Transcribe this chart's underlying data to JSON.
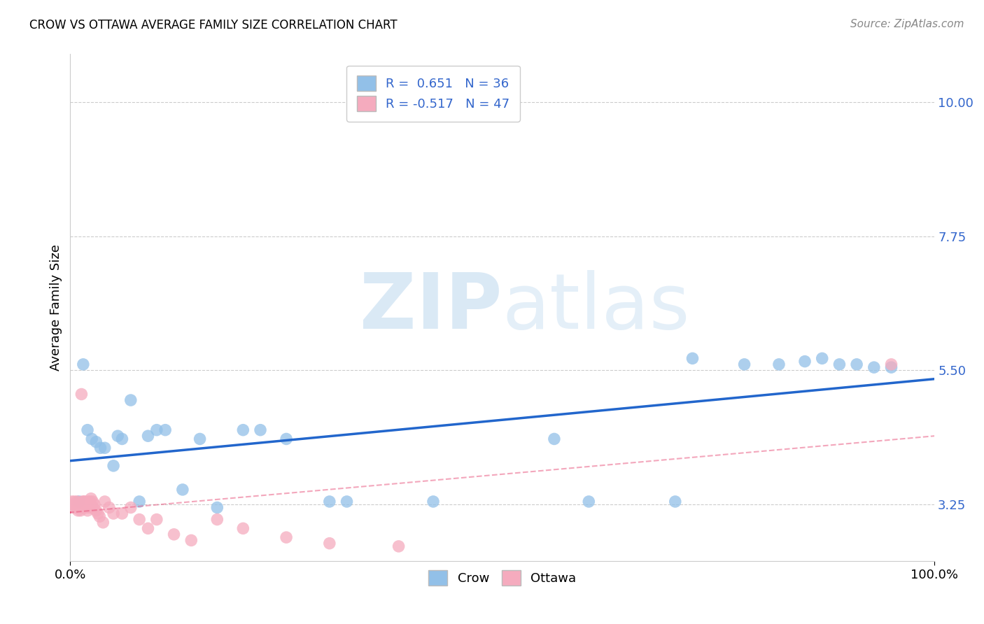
{
  "title": "CROW VS OTTAWA AVERAGE FAMILY SIZE CORRELATION CHART",
  "source": "Source: ZipAtlas.com",
  "ylabel": "Average Family Size",
  "xlim": [
    0.0,
    1.0
  ],
  "ylim": [
    2.3,
    10.8
  ],
  "yticks": [
    3.25,
    5.5,
    7.75,
    10.0
  ],
  "ytick_labels": [
    "3.25",
    "5.50",
    "7.75",
    "10.00"
  ],
  "crow_color": "#92C0E8",
  "ottawa_color": "#F5ABBE",
  "crow_line_color": "#2266CC",
  "ottawa_line_color": "#E8507A",
  "crow_R": 0.651,
  "crow_N": 36,
  "ottawa_R": -0.517,
  "ottawa_N": 47,
  "watermark_zip": "ZIP",
  "watermark_atlas": "atlas",
  "legend_label_crow": "Crow",
  "legend_label_ottawa": "Ottawa",
  "blue_text_color": "#3366CC",
  "crow_x": [
    0.01,
    0.015,
    0.02,
    0.025,
    0.03,
    0.035,
    0.04,
    0.05,
    0.055,
    0.06,
    0.07,
    0.08,
    0.09,
    0.1,
    0.11,
    0.13,
    0.15,
    0.17,
    0.2,
    0.22,
    0.25,
    0.3,
    0.32,
    0.42,
    0.56,
    0.6,
    0.7,
    0.72,
    0.78,
    0.82,
    0.85,
    0.87,
    0.89,
    0.91,
    0.93,
    0.95
  ],
  "crow_y": [
    3.3,
    5.6,
    4.5,
    4.35,
    4.3,
    4.2,
    4.2,
    3.9,
    4.4,
    4.35,
    5.0,
    3.3,
    4.4,
    4.5,
    4.5,
    3.5,
    4.35,
    3.2,
    4.5,
    4.5,
    4.35,
    3.3,
    3.3,
    3.3,
    4.35,
    3.3,
    3.3,
    5.7,
    5.6,
    5.6,
    5.65,
    5.7,
    5.6,
    5.6,
    5.55,
    5.55
  ],
  "ottawa_x": [
    0.002,
    0.003,
    0.004,
    0.005,
    0.006,
    0.007,
    0.008,
    0.009,
    0.01,
    0.011,
    0.012,
    0.013,
    0.014,
    0.015,
    0.016,
    0.017,
    0.018,
    0.019,
    0.02,
    0.021,
    0.022,
    0.023,
    0.024,
    0.025,
    0.026,
    0.027,
    0.028,
    0.03,
    0.032,
    0.034,
    0.038,
    0.04,
    0.045,
    0.05,
    0.06,
    0.07,
    0.08,
    0.09,
    0.1,
    0.12,
    0.14,
    0.17,
    0.2,
    0.25,
    0.3,
    0.38,
    0.95
  ],
  "ottawa_y": [
    3.3,
    3.25,
    3.2,
    3.3,
    3.25,
    3.2,
    3.3,
    3.15,
    3.2,
    3.25,
    3.15,
    5.1,
    3.3,
    3.2,
    3.3,
    3.3,
    3.25,
    3.2,
    3.15,
    3.3,
    3.2,
    3.3,
    3.35,
    3.2,
    3.3,
    3.2,
    3.25,
    3.15,
    3.1,
    3.05,
    2.95,
    3.3,
    3.2,
    3.1,
    3.1,
    3.2,
    3.0,
    2.85,
    3.0,
    2.75,
    2.65,
    3.0,
    2.85,
    2.7,
    2.6,
    2.55,
    5.6
  ]
}
